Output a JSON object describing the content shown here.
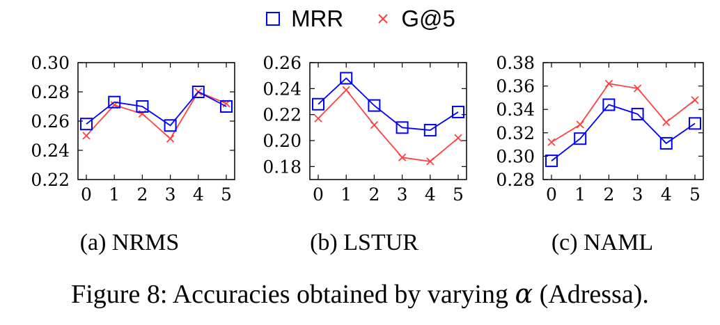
{
  "legend": {
    "mrr_label": "MRR",
    "g5_label": "G@5"
  },
  "colors": {
    "mrr": "#0000ff",
    "g5": "#ff4040"
  },
  "caption": {
    "prefix": "Figure 8: Accuracies obtained by varying ",
    "symbol": "α",
    "suffix": " (Adressa)."
  },
  "chart_data": [
    {
      "type": "line",
      "sublabel": "(a) NRMS",
      "categories": [
        "0",
        "1",
        "2",
        "3",
        "4",
        "5"
      ],
      "x": [
        0,
        1,
        2,
        3,
        4,
        5
      ],
      "ylim": [
        0.22,
        0.3
      ],
      "yticks": [
        0.22,
        0.24,
        0.26,
        0.28,
        0.3
      ],
      "ytick_labels": [
        "0.22",
        "0.24",
        "0.26",
        "0.28",
        "0.30"
      ],
      "series": [
        {
          "name": "MRR",
          "marker": "square",
          "values": [
            0.258,
            0.273,
            0.27,
            0.257,
            0.28,
            0.27
          ]
        },
        {
          "name": "G@5",
          "marker": "x",
          "values": [
            0.25,
            0.271,
            0.265,
            0.248,
            0.28,
            0.272
          ]
        }
      ]
    },
    {
      "type": "line",
      "sublabel": "(b) LSTUR",
      "categories": [
        "0",
        "1",
        "2",
        "3",
        "4",
        "5"
      ],
      "x": [
        0,
        1,
        2,
        3,
        4,
        5
      ],
      "ylim": [
        0.17,
        0.26
      ],
      "yticks": [
        0.18,
        0.2,
        0.22,
        0.24,
        0.26
      ],
      "ytick_labels": [
        "0.18",
        "0.20",
        "0.22",
        "0.24",
        "0.26"
      ],
      "series": [
        {
          "name": "MRR",
          "marker": "square",
          "values": [
            0.228,
            0.248,
            0.227,
            0.21,
            0.208,
            0.222
          ]
        },
        {
          "name": "G@5",
          "marker": "x",
          "values": [
            0.217,
            0.239,
            0.212,
            0.187,
            0.184,
            0.202
          ]
        }
      ]
    },
    {
      "type": "line",
      "sublabel": "(c) NAML",
      "categories": [
        "0",
        "1",
        "2",
        "3",
        "4",
        "5"
      ],
      "x": [
        0,
        1,
        2,
        3,
        4,
        5
      ],
      "ylim": [
        0.28,
        0.38
      ],
      "yticks": [
        0.28,
        0.3,
        0.32,
        0.34,
        0.36,
        0.38
      ],
      "ytick_labels": [
        "0.28",
        "0.30",
        "0.32",
        "0.34",
        "0.36",
        "0.38"
      ],
      "series": [
        {
          "name": "MRR",
          "marker": "square",
          "values": [
            0.296,
            0.315,
            0.344,
            0.336,
            0.311,
            0.328
          ]
        },
        {
          "name": "G@5",
          "marker": "x",
          "values": [
            0.312,
            0.327,
            0.362,
            0.358,
            0.329,
            0.348
          ]
        }
      ]
    }
  ]
}
